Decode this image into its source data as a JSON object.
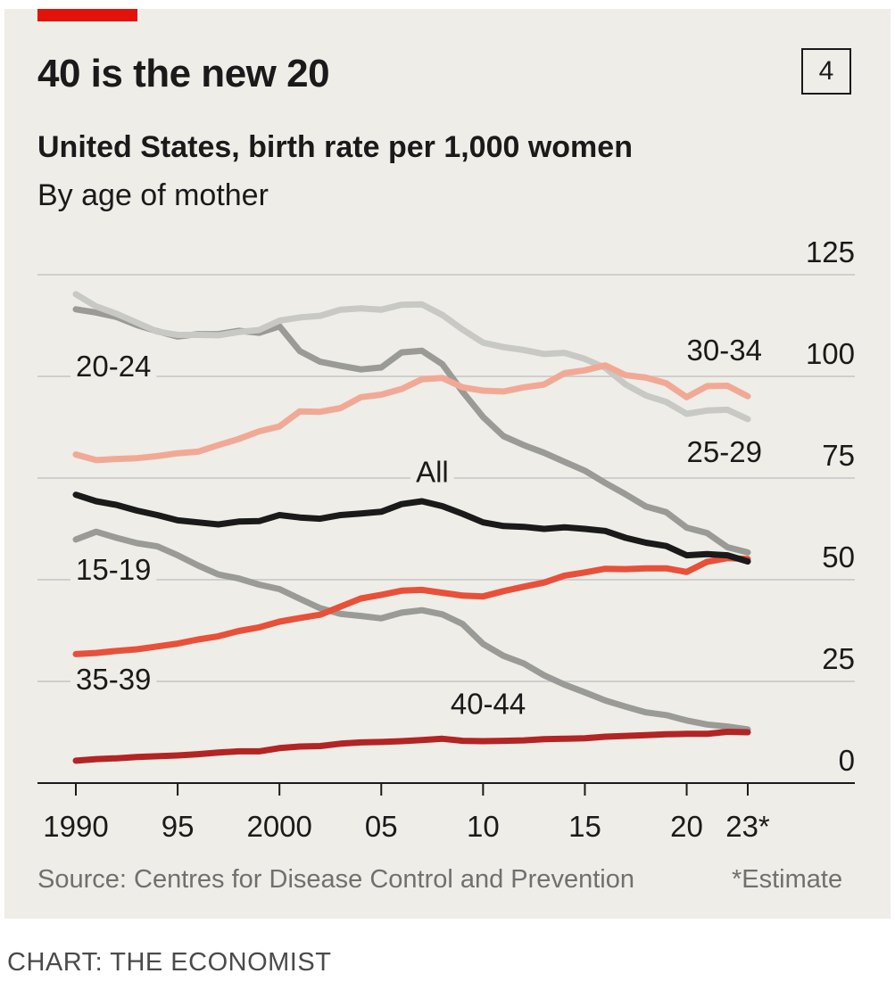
{
  "header": {
    "title": "40 is the new 20",
    "chart_number": "4",
    "subtitle": "United States, birth rate per 1,000 women",
    "subsubtitle": "By age of mother"
  },
  "footer": {
    "source": "Source: Centres for Disease Control and Prevention",
    "footnote": "*Estimate",
    "credit": "CHART: THE ECONOMIST"
  },
  "colors": {
    "panel": "#eeede7",
    "brand_red": "#e3120b",
    "grid": "#cfcfcf"
  },
  "chart_data": {
    "type": "line",
    "title": "40 is the new 20",
    "x": [
      1990,
      1991,
      1992,
      1993,
      1994,
      1995,
      1996,
      1997,
      1998,
      1999,
      2000,
      2001,
      2002,
      2003,
      2004,
      2005,
      2006,
      2007,
      2008,
      2009,
      2010,
      2011,
      2012,
      2013,
      2014,
      2015,
      2016,
      2017,
      2018,
      2019,
      2020,
      2021,
      2022,
      2023
    ],
    "x_tick_labels": [
      "1990",
      "95",
      "2000",
      "05",
      "10",
      "15",
      "20",
      "23*"
    ],
    "x_tick_values": [
      1990,
      1995,
      2000,
      2005,
      2010,
      2015,
      2020,
      2023
    ],
    "ylim": [
      0,
      125
    ],
    "y_ticks": [
      0,
      25,
      50,
      75,
      100,
      125
    ],
    "y_tick_labels": [
      "0",
      "25",
      "50",
      "75",
      "100",
      "125"
    ],
    "grid": true,
    "series": [
      {
        "name": "20-24",
        "color": "#9a9a96",
        "label_year": 1990,
        "label_value": 100,
        "values": [
          116.5,
          115.7,
          114.6,
          112.6,
          111.1,
          109.8,
          110.4,
          110.4,
          111.2,
          110.7,
          112.3,
          106.2,
          103.6,
          102.6,
          101.7,
          102.2,
          105.9,
          106.3,
          103.0,
          96.2,
          90.0,
          85.3,
          83.1,
          81.2,
          79.0,
          76.8,
          73.8,
          71.0,
          68.0,
          66.6,
          62.8,
          61.5,
          58.0,
          56.7
        ]
      },
      {
        "name": "25-29",
        "color": "#c8c8c4",
        "label_year": 2020,
        "label_value": 79,
        "values": [
          120.2,
          117.2,
          115.4,
          113.2,
          111.0,
          110.2,
          110.2,
          110.1,
          110.9,
          111.4,
          113.7,
          114.5,
          114.9,
          116.4,
          116.7,
          116.4,
          117.6,
          117.7,
          115.1,
          111.5,
          108.3,
          107.2,
          106.5,
          105.5,
          105.8,
          104.3,
          102.1,
          98.0,
          95.3,
          93.7,
          90.8,
          91.6,
          91.8,
          89.5
        ]
      },
      {
        "name": "30-34",
        "color": "#f1a996",
        "label_year": 2020,
        "label_value": 104,
        "values": [
          80.8,
          79.4,
          79.7,
          79.9,
          80.4,
          81.1,
          81.5,
          83.1,
          84.6,
          86.5,
          87.7,
          91.4,
          91.3,
          92.2,
          94.9,
          95.5,
          96.9,
          99.3,
          99.6,
          97.3,
          96.5,
          96.3,
          97.3,
          98.0,
          100.8,
          101.5,
          102.7,
          100.3,
          99.7,
          98.3,
          94.9,
          97.6,
          97.7,
          95.1
        ]
      },
      {
        "name": "All",
        "color": "#1a1a1a",
        "label_year": 2006.7,
        "label_value": 74,
        "values": [
          70.9,
          69.3,
          68.4,
          67.0,
          65.9,
          64.6,
          64.1,
          63.6,
          64.3,
          64.4,
          65.9,
          65.3,
          65.0,
          65.9,
          66.3,
          66.7,
          68.6,
          69.3,
          68.1,
          66.2,
          64.1,
          63.2,
          63.0,
          62.5,
          62.9,
          62.5,
          62.0,
          60.3,
          59.1,
          58.3,
          56.0,
          56.3,
          56.0,
          54.5
        ]
      },
      {
        "name": "15-19",
        "color": "#9a9a96",
        "label_year": 1990,
        "label_value": 50,
        "values": [
          59.9,
          61.8,
          60.3,
          59.0,
          58.2,
          56.0,
          53.5,
          51.3,
          50.3,
          48.8,
          47.7,
          45.3,
          43.0,
          41.6,
          41.1,
          40.5,
          41.9,
          42.5,
          41.5,
          39.1,
          34.2,
          31.3,
          29.4,
          26.5,
          24.2,
          22.3,
          20.3,
          18.8,
          17.4,
          16.7,
          15.4,
          14.4,
          13.9,
          13.2
        ]
      },
      {
        "name": "35-39",
        "color": "#e8503a",
        "label_year": 1990,
        "label_value": 23,
        "values": [
          31.7,
          32.0,
          32.5,
          32.9,
          33.6,
          34.3,
          35.3,
          36.1,
          37.4,
          38.3,
          39.7,
          40.6,
          41.4,
          43.4,
          45.4,
          46.3,
          47.3,
          47.5,
          46.8,
          46.1,
          45.9,
          47.2,
          48.3,
          49.3,
          51.0,
          51.8,
          52.7,
          52.6,
          52.8,
          52.8,
          51.9,
          54.4,
          55.3,
          55.1
        ]
      },
      {
        "name": "40-44",
        "color": "#b32424",
        "label_year": 2008.4,
        "label_value": 17,
        "values": [
          5.5,
          5.9,
          6.1,
          6.4,
          6.6,
          6.8,
          7.1,
          7.5,
          7.8,
          7.8,
          8.6,
          9.0,
          9.1,
          9.7,
          10.0,
          10.1,
          10.3,
          10.6,
          10.9,
          10.4,
          10.3,
          10.4,
          10.5,
          10.8,
          10.9,
          11.0,
          11.4,
          11.6,
          11.8,
          12.0,
          12.1,
          12.1,
          12.6,
          12.5
        ]
      }
    ]
  }
}
